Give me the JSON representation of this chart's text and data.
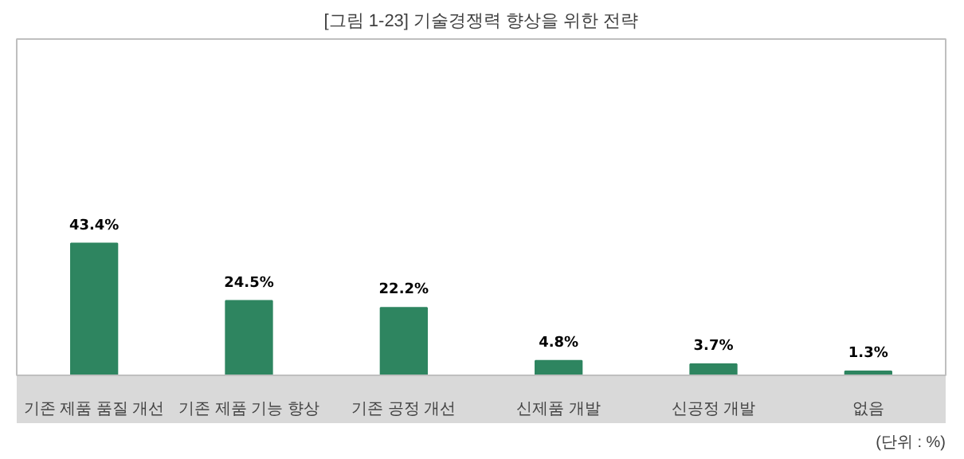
{
  "chart_data": {
    "type": "bar",
    "title": "[그림 1-23] 기술경쟁력 향상을 위한 전략",
    "categories": [
      "기존 제품 품질 개선",
      "기존 제품 기능 향상",
      "기존 공정 개선",
      "신제품 개발",
      "신공정 개발",
      "없음"
    ],
    "values": [
      43.4,
      24.5,
      22.2,
      4.8,
      3.7,
      1.3
    ],
    "color": "#2e8560",
    "value_labels": [
      "43.4%",
      "24.5%",
      "22.2%",
      "4.8%",
      "3.7%",
      "1.3%"
    ],
    "annotations": [
      "(단위 : %)"
    ]
  }
}
